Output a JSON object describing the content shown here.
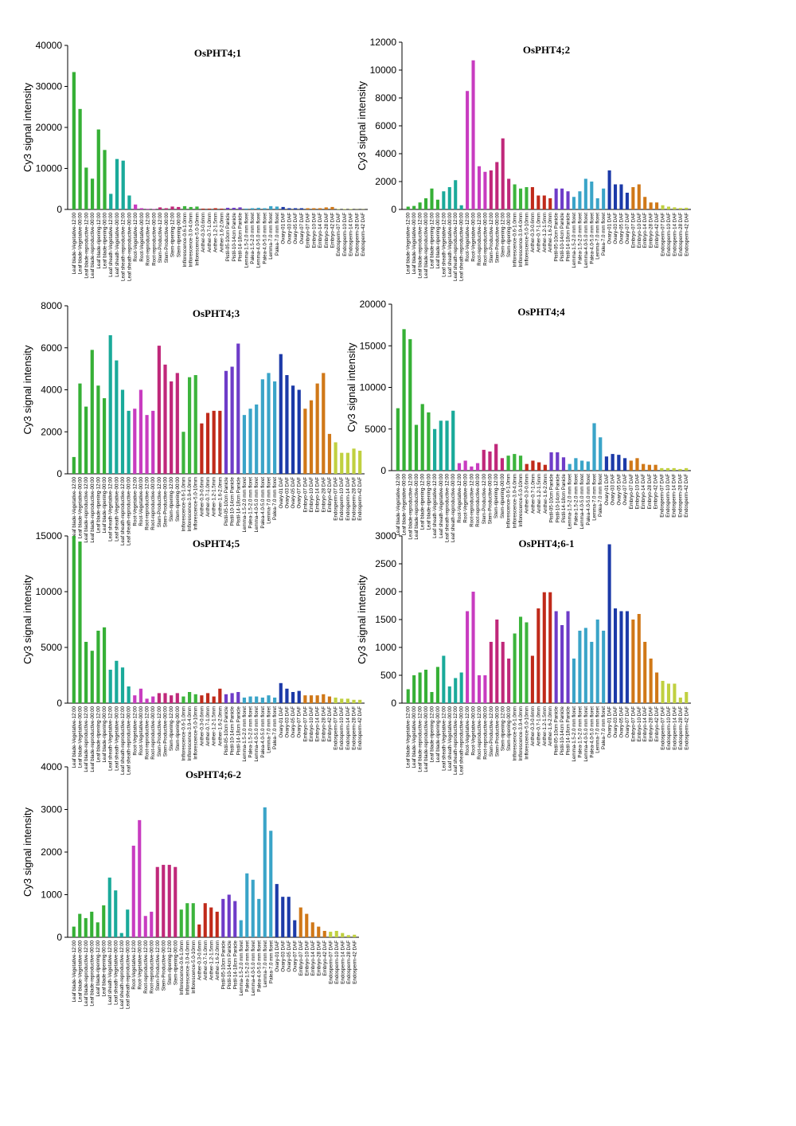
{
  "sample_labels": [
    "Leaf blade-Vegetative-12:00",
    "Leaf blade-Vegetative-00:00",
    "Leaf blade-reproductive-12:00",
    "Leaf blade-reproductive-00:00",
    "Leaf blade-ripening-12:00",
    "Leaf blade-ripening-00:00",
    "Leaf sheath-Vegetative-12:00",
    "Leaf sheath-Vegetative-00:00",
    "Leaf sheath-reproductive-12:00",
    "Leaf sheath-reproductive-00:00",
    "Root-Vegetative-12:00",
    "Root-Vegetative-00:00",
    "Root-reproductive-12:00",
    "Root-reproductive-00:00",
    "Stem-Productive-12:00",
    "Stem-Productive-00:00",
    "Stem-ripening-12:00",
    "Stem-ripening-00:00",
    "Inflorescence-0.6-1.0mm",
    "Inflorescence-3.0-4.0mm",
    "Inflorescence-5.0-10mm",
    "Anther-0.3-0.6mm",
    "Anther-0.7-1.0mm",
    "Anther-1.2-1.5mm",
    "Anther-1.6-2.0mm",
    "Pistil-05-10cm Panicle",
    "Pistil-10-14cm Panicle",
    "Pistil-14-18cm Panicle",
    "Lemma-1.5-2.0 mm floret",
    "Palea-1.5-2.0 mm floret",
    "Lemma-4.0-5.0 mm floret",
    "Palea-4.0-5.0 mm floret",
    "Lemma-7.0 mm floret",
    "Palea-7.0 mm floret",
    "Ovary-01 DAF",
    "Ovary-03 DAF",
    "Ovary-05 DAF",
    "Ovary-07 DAF",
    "Embryo-07 DAF",
    "Embryo-10 DAF",
    "Embryo-14 DAF",
    "Embryo-28 DAF",
    "Embryo-42 DAF",
    "Endosperm-07 DAF",
    "Endosperm-10 DAF",
    "Endosperm-14 DAF",
    "Endosperm-28 DAF",
    "Endosperm-42 DAF"
  ],
  "group_colors": [
    "#36b036",
    "#1aaa9a",
    "#c83cc0",
    "#c0287a",
    "#3cb43c",
    "#c02a1a",
    "#6e3cc8",
    "#3aa4c8",
    "#1c3aa8",
    "#d07818",
    "#c0d040"
  ],
  "group_sizes": [
    6,
    4,
    4,
    4,
    3,
    4,
    3,
    6,
    4,
    5,
    5
  ],
  "chart_data": [
    {
      "type": "bar",
      "title": "OsPHT4;1",
      "ylabel": "Cy3 signal intensity",
      "ylim": [
        0,
        40000
      ],
      "yticks": [
        0,
        10000,
        20000,
        30000,
        40000
      ],
      "values": [
        33500,
        24500,
        10200,
        7500,
        19500,
        14500,
        3800,
        12300,
        11900,
        3400,
        1200,
        300,
        150,
        120,
        500,
        300,
        700,
        600,
        800,
        600,
        700,
        200,
        200,
        300,
        200,
        400,
        400,
        500,
        200,
        300,
        400,
        300,
        800,
        700,
        600,
        300,
        300,
        300,
        300,
        300,
        300,
        500,
        600,
        100,
        100,
        100,
        50,
        50
      ]
    },
    {
      "type": "bar",
      "title": "OsPHT4;2",
      "ylabel": "Cy3 signal intensity",
      "ylim": [
        0,
        12000
      ],
      "yticks": [
        0,
        2000,
        4000,
        6000,
        8000,
        10000,
        12000
      ],
      "values": [
        200,
        250,
        500,
        800,
        1500,
        700,
        1300,
        1600,
        2100,
        300,
        8500,
        10700,
        3100,
        2700,
        2800,
        3400,
        5100,
        2200,
        1800,
        1500,
        1600,
        1600,
        1000,
        1000,
        800,
        1500,
        1500,
        1300,
        900,
        1300,
        2200,
        2000,
        800,
        1500,
        2800,
        1800,
        1800,
        1200,
        1600,
        1800,
        900,
        500,
        500,
        300,
        200,
        150,
        100,
        120
      ]
    },
    {
      "type": "bar",
      "title": "OsPHT4;3",
      "ylabel": "Cy3 signal intensity",
      "ylim": [
        0,
        8000
      ],
      "yticks": [
        0,
        2000,
        4000,
        6000,
        8000
      ],
      "values": [
        800,
        4300,
        3200,
        5900,
        4200,
        3600,
        6600,
        5400,
        4000,
        3000,
        3100,
        4000,
        2800,
        3000,
        6100,
        5200,
        4400,
        4800,
        2000,
        4600,
        4700,
        2400,
        2900,
        3000,
        3000,
        4900,
        5100,
        6200,
        2800,
        3100,
        3300,
        4500,
        4800,
        4400,
        5700,
        4700,
        4200,
        4000,
        3100,
        3500,
        4300,
        4800,
        1900,
        1500,
        1000,
        1000,
        1200,
        1100
      ]
    },
    {
      "type": "bar",
      "title": "OsPHT4;4",
      "ylabel": "Cy3 signal intensity",
      "ylim": [
        0,
        20000
      ],
      "yticks": [
        0,
        5000,
        10000,
        15000,
        20000
      ],
      "values": [
        7500,
        17000,
        15800,
        5500,
        8000,
        7000,
        5000,
        6000,
        6000,
        7200,
        900,
        1200,
        500,
        900,
        2500,
        2300,
        3200,
        1500,
        1800,
        2000,
        1800,
        800,
        1200,
        1000,
        700,
        2200,
        2200,
        1600,
        800,
        1500,
        1200,
        1100,
        5700,
        4000,
        1700,
        2000,
        1900,
        1500,
        1200,
        1500,
        800,
        700,
        700,
        300,
        300,
        300,
        200,
        300
      ]
    },
    {
      "type": "bar",
      "title": "OsPHT4;5",
      "ylabel": "Cy3 signal intensity",
      "ylim": [
        0,
        15000
      ],
      "yticks": [
        0,
        5000,
        10000,
        15000
      ],
      "values": [
        15000,
        14500,
        5500,
        4700,
        6500,
        6800,
        3000,
        3800,
        3200,
        1500,
        700,
        1300,
        400,
        600,
        900,
        900,
        700,
        900,
        600,
        1000,
        800,
        700,
        900,
        600,
        1300,
        800,
        900,
        1000,
        500,
        600,
        600,
        500,
        700,
        500,
        1800,
        1300,
        1000,
        1100,
        700,
        700,
        700,
        800,
        600,
        500,
        400,
        400,
        300,
        300
      ]
    },
    {
      "type": "bar",
      "title": "OsPHT4;6-1",
      "ylabel": "Cy3 signal intensity",
      "ylim": [
        0,
        3000
      ],
      "yticks": [
        0,
        500,
        1000,
        1500,
        2000,
        2500,
        3000
      ],
      "values": [
        250,
        500,
        550,
        600,
        200,
        650,
        850,
        300,
        450,
        550,
        1650,
        2000,
        500,
        500,
        1100,
        1500,
        1100,
        800,
        1250,
        1550,
        1450,
        850,
        1700,
        1990,
        1990,
        1650,
        1400,
        1650,
        800,
        1300,
        1350,
        1100,
        1500,
        1300,
        2850,
        1700,
        1650,
        1650,
        1500,
        1600,
        1100,
        800,
        550,
        400,
        350,
        350,
        100,
        200
      ]
    },
    {
      "type": "bar",
      "title": "OsPHT4;6-2",
      "ylabel": "Cy3 signal intensity",
      "ylim": [
        0,
        4000
      ],
      "yticks": [
        0,
        1000,
        2000,
        3000,
        4000
      ],
      "values": [
        250,
        550,
        450,
        600,
        350,
        750,
        1400,
        1100,
        100,
        650,
        2150,
        2750,
        500,
        600,
        1650,
        1700,
        1700,
        1650,
        650,
        800,
        800,
        300,
        800,
        700,
        600,
        900,
        1000,
        850,
        400,
        1500,
        1350,
        900,
        3050,
        2500,
        1250,
        950,
        950,
        400,
        700,
        550,
        350,
        250,
        150,
        130,
        150,
        100,
        50,
        60
      ]
    }
  ]
}
